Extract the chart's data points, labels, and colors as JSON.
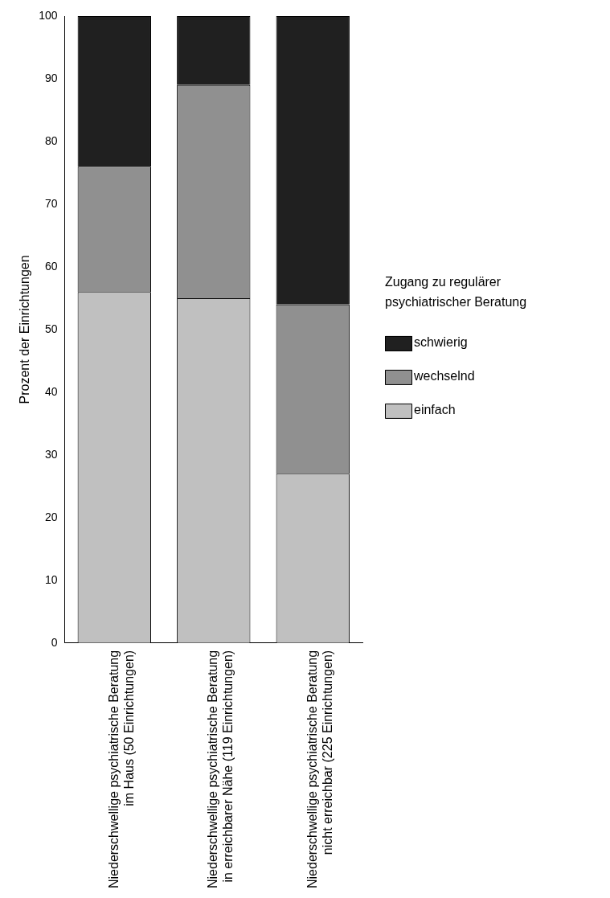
{
  "chart_data": {
    "type": "bar",
    "ylabel": "Prozent der Einrichtungen",
    "legend_title": "Zugang zu regulärer psychiatrischer Beratung",
    "legend": "right",
    "stacked": true,
    "categories": [
      "Niederschwellige psychiatrische Beratung im Haus (50 Einrichtungen)",
      "Niederschwellige psychiatrische Beratung in erreichbarer Nähe (119 Einrichtungen)",
      "Niederschwellige psychiatrische Beratung nicht erreichbar (225 Einrichtungen)"
    ],
    "ylim": [
      0,
      100
    ],
    "yticks": [
      0,
      10,
      20,
      30,
      40,
      50,
      60,
      70,
      80,
      90,
      100
    ],
    "series": [
      {
        "name": "einfach",
        "color": "#c0c0c0",
        "values": [
          56,
          55,
          27
        ]
      },
      {
        "name": "wechselnd",
        "color": "#909090",
        "values": [
          20,
          34,
          27
        ]
      },
      {
        "name": "schwierig",
        "color": "#202020",
        "values": [
          24,
          11,
          46
        ]
      }
    ]
  }
}
